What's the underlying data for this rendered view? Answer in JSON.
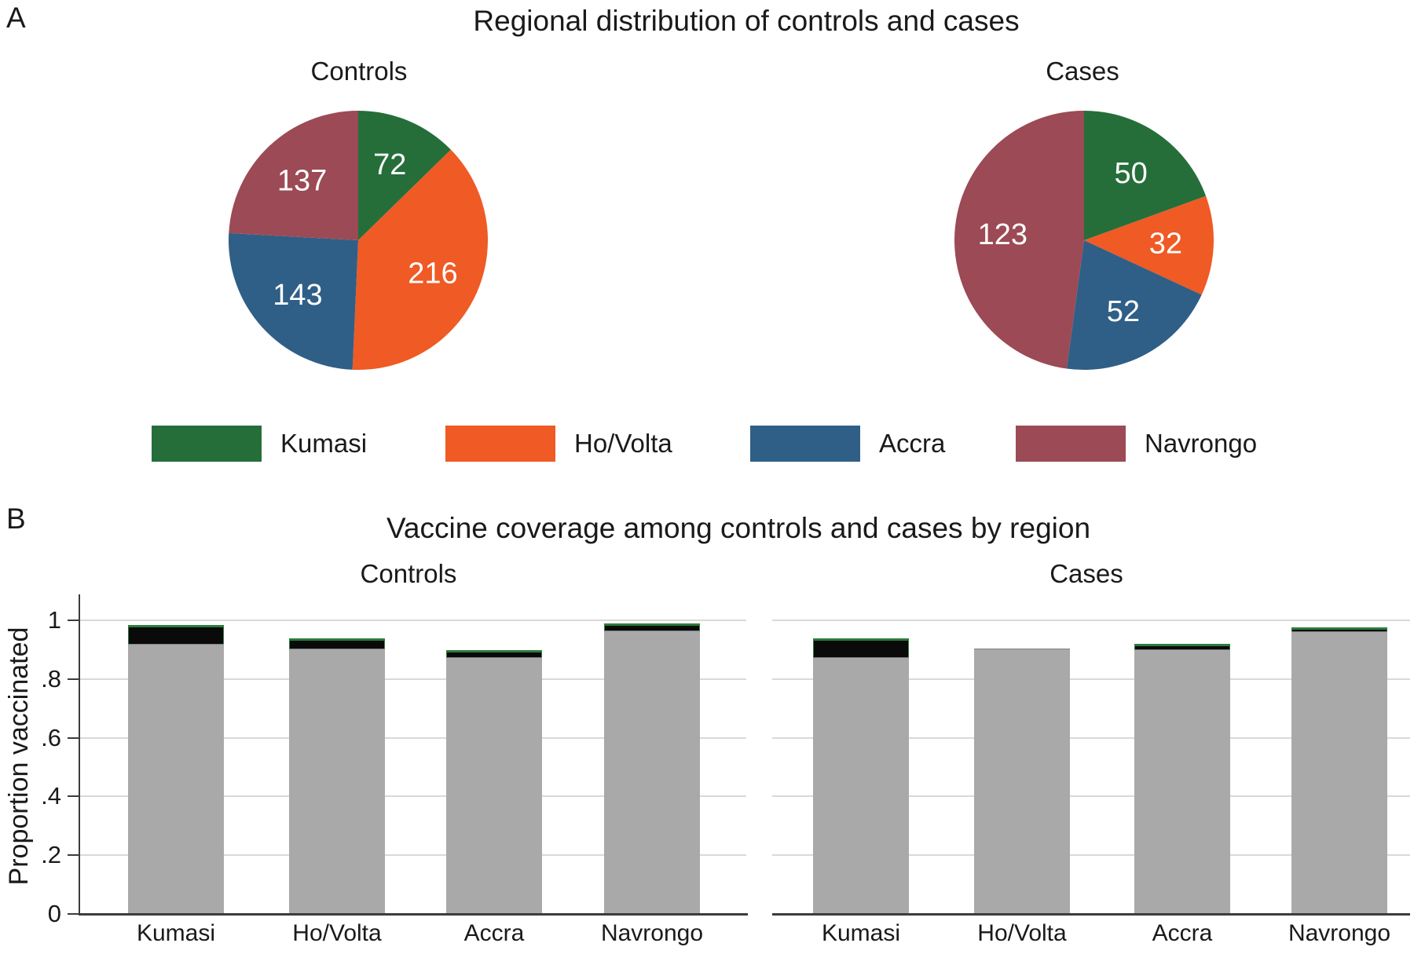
{
  "panel_a": {
    "label": "A",
    "title": "Regional distribution of controls and cases",
    "pies": [
      {
        "subtitle": "Controls",
        "slices": [
          {
            "region": "Kumasi",
            "value": 72
          },
          {
            "region": "Ho/Volta",
            "value": 216
          },
          {
            "region": "Accra",
            "value": 143
          },
          {
            "region": "Navrongo",
            "value": 137
          }
        ]
      },
      {
        "subtitle": "Cases",
        "slices": [
          {
            "region": "Kumasi",
            "value": 50
          },
          {
            "region": "Ho/Volta",
            "value": 32
          },
          {
            "region": "Accra",
            "value": 52
          },
          {
            "region": "Navrongo",
            "value": 123
          }
        ]
      }
    ]
  },
  "legend": {
    "items": [
      {
        "label": "Kumasi",
        "color": "#256e3a"
      },
      {
        "label": "Ho/Volta",
        "color": "#ef5a25"
      },
      {
        "label": "Accra",
        "color": "#2f5f86"
      },
      {
        "label": "Navrongo",
        "color": "#9c4a55"
      }
    ]
  },
  "panel_b": {
    "label": "B",
    "title": "Vaccine coverage among controls and cases by region",
    "ylabel": "Proportion vaccinated",
    "yticks": [
      {
        "value": 0,
        "label": "0"
      },
      {
        "value": 0.2,
        "label": ".2"
      },
      {
        "value": 0.4,
        "label": ".4"
      },
      {
        "value": 0.6,
        "label": ".6"
      },
      {
        "value": 0.8,
        "label": ".8"
      },
      {
        "value": 1,
        "label": "1"
      }
    ],
    "groups": [
      {
        "subtitle": "Controls",
        "bars": [
          {
            "region": "Kumasi",
            "gray": 0.92,
            "black": 0.065
          },
          {
            "region": "Ho/Volta",
            "gray": 0.905,
            "black": 0.035
          },
          {
            "region": "Accra",
            "gray": 0.875,
            "black": 0.025
          },
          {
            "region": "Navrongo",
            "gray": 0.965,
            "black": 0.025
          }
        ]
      },
      {
        "subtitle": "Cases",
        "bars": [
          {
            "region": "Kumasi",
            "gray": 0.875,
            "black": 0.065
          },
          {
            "region": "Ho/Volta",
            "gray": 0.905,
            "black": 0
          },
          {
            "region": "Accra",
            "gray": 0.9,
            "black": 0.02
          },
          {
            "region": "Navrongo",
            "gray": 0.963,
            "black": 0.013
          }
        ]
      }
    ]
  },
  "colors": {
    "kumasi_green": "#256e3a",
    "ho_volta_orange": "#ef5a25",
    "accra_blue": "#2f5f86",
    "navrongo_maroon": "#9c4a55",
    "bar_gray": "#a9a9a9",
    "bar_black": "#0a0a0a",
    "bar_outline_green": "#2c7d3c",
    "gridline": "#d9d9d9",
    "axis": "#3c3c3c"
  },
  "chart_data": [
    {
      "type": "pie",
      "title": "Controls",
      "categories": [
        "Kumasi",
        "Ho/Volta",
        "Accra",
        "Navrongo"
      ],
      "values": [
        72,
        216,
        143,
        137
      ],
      "colors": [
        "#256e3a",
        "#ef5a25",
        "#2f5f86",
        "#9c4a55"
      ],
      "data_labels": [
        "72",
        "216",
        "143",
        "137"
      ],
      "legend_position": "bottom"
    },
    {
      "type": "pie",
      "title": "Cases",
      "categories": [
        "Kumasi",
        "Ho/Volta",
        "Accra",
        "Navrongo"
      ],
      "values": [
        50,
        32,
        52,
        123
      ],
      "colors": [
        "#256e3a",
        "#ef5a25",
        "#2f5f86",
        "#9c4a55"
      ],
      "data_labels": [
        "50",
        "32",
        "52",
        "123"
      ],
      "legend_position": "bottom"
    },
    {
      "type": "bar",
      "title": "Controls",
      "stacked": true,
      "categories": [
        "Kumasi",
        "Ho/Volta",
        "Accra",
        "Navrongo"
      ],
      "series": [
        {
          "name": "gray segment",
          "values": [
            0.92,
            0.905,
            0.875,
            0.965
          ]
        },
        {
          "name": "black segment",
          "values": [
            0.065,
            0.035,
            0.025,
            0.025
          ]
        }
      ],
      "xlabel": "",
      "ylabel": "Proportion vaccinated",
      "ylim": [
        0,
        1.09
      ],
      "yticks": [
        0,
        0.2,
        0.4,
        0.6,
        0.8,
        1
      ],
      "grid": true
    },
    {
      "type": "bar",
      "title": "Cases",
      "stacked": true,
      "categories": [
        "Kumasi",
        "Ho/Volta",
        "Accra",
        "Navrongo"
      ],
      "series": [
        {
          "name": "gray segment",
          "values": [
            0.875,
            0.905,
            0.9,
            0.963
          ]
        },
        {
          "name": "black segment",
          "values": [
            0.065,
            0,
            0.02,
            0.013
          ]
        }
      ],
      "xlabel": "",
      "ylabel": "Proportion vaccinated",
      "ylim": [
        0,
        1.09
      ],
      "yticks": [
        0,
        0.2,
        0.4,
        0.6,
        0.8,
        1
      ],
      "grid": true
    }
  ]
}
